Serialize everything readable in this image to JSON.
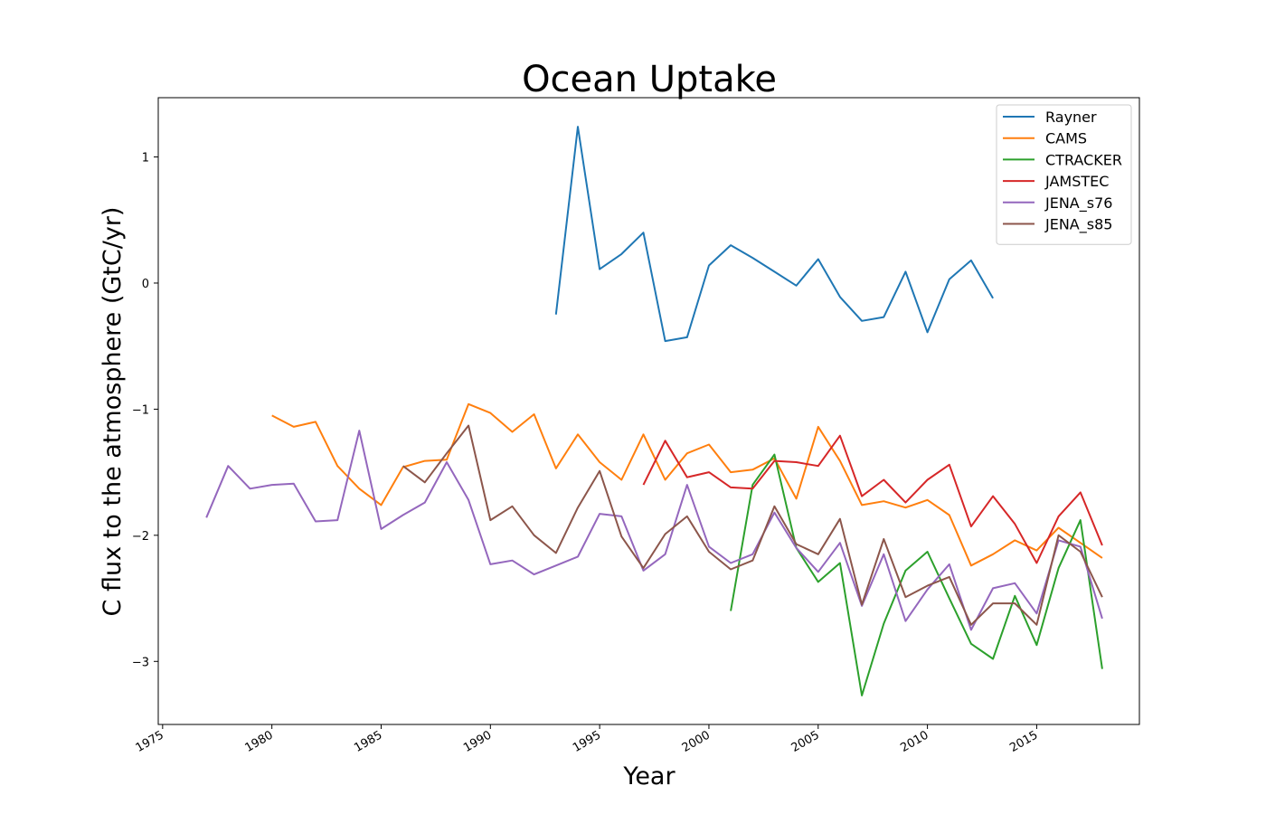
{
  "chart_data": {
    "type": "line",
    "title": "Ocean Uptake",
    "xlabel": "Year",
    "ylabel": "C flux to the atmosphere (GtC/yr)",
    "xlim": [
      1974.8,
      2019.7
    ],
    "ylim": [
      -3.5,
      1.47
    ],
    "xticks": [
      1975,
      1980,
      1985,
      1990,
      1995,
      2000,
      2005,
      2010,
      2015
    ],
    "yticks": [
      1,
      0,
      -1,
      -2,
      -3
    ],
    "ytick_labels": [
      "1",
      "0",
      "−1",
      "−2",
      "−3"
    ],
    "grid": false,
    "legend_position": "top-right",
    "series": [
      {
        "name": "Rayner",
        "color": "#1f77b4",
        "x": [
          1993,
          1994,
          1995,
          1996,
          1997,
          1998,
          1999,
          2000,
          2001,
          2002,
          2003,
          2004,
          2005,
          2006,
          2007,
          2008,
          2009,
          2010,
          2011,
          2012,
          2013
        ],
        "y": [
          -0.25,
          1.24,
          0.11,
          0.23,
          0.4,
          -0.46,
          -0.43,
          0.14,
          0.3,
          0.2,
          0.09,
          -0.02,
          0.19,
          -0.11,
          -0.3,
          -0.27,
          0.09,
          -0.39,
          0.03,
          0.18,
          -0.12
        ]
      },
      {
        "name": "CAMS",
        "color": "#ff7f0e",
        "x": [
          1980,
          1981,
          1982,
          1983,
          1984,
          1985,
          1986,
          1987,
          1988,
          1989,
          1990,
          1991,
          1992,
          1993,
          1994,
          1995,
          1996,
          1997,
          1998,
          1999,
          2000,
          2001,
          2002,
          2003,
          2004,
          2005,
          2006,
          2007,
          2008,
          2009,
          2010,
          2011,
          2012,
          2013,
          2014,
          2015,
          2016,
          2017,
          2018
        ],
        "y": [
          -1.05,
          -1.14,
          -1.1,
          -1.45,
          -1.63,
          -1.76,
          -1.46,
          -1.41,
          -1.4,
          -0.96,
          -1.03,
          -1.18,
          -1.04,
          -1.47,
          -1.2,
          -1.42,
          -1.56,
          -1.2,
          -1.56,
          -1.35,
          -1.28,
          -1.5,
          -1.48,
          -1.39,
          -1.71,
          -1.14,
          -1.41,
          -1.76,
          -1.73,
          -1.78,
          -1.72,
          -1.84,
          -2.24,
          -2.15,
          -2.04,
          -2.12,
          -1.94,
          -2.06,
          -2.18
        ]
      },
      {
        "name": "CTRACKER",
        "color": "#2ca02c",
        "x": [
          2001,
          2002,
          2003,
          2004,
          2005,
          2006,
          2007,
          2008,
          2009,
          2010,
          2011,
          2012,
          2013,
          2014,
          2015,
          2016,
          2017,
          2018
        ],
        "y": [
          -2.6,
          -1.6,
          -1.36,
          -2.1,
          -2.37,
          -2.22,
          -3.27,
          -2.7,
          -2.28,
          -2.13,
          -2.5,
          -2.86,
          -2.98,
          -2.48,
          -2.87,
          -2.26,
          -1.88,
          -3.06
        ]
      },
      {
        "name": "JAMSTEC",
        "color": "#d62728",
        "x": [
          1997,
          1998,
          1999,
          2000,
          2001,
          2002,
          2003,
          2004,
          2005,
          2006,
          2007,
          2008,
          2009,
          2010,
          2011,
          2012,
          2013,
          2014,
          2015,
          2016,
          2017,
          2018
        ],
        "y": [
          -1.6,
          -1.25,
          -1.54,
          -1.5,
          -1.62,
          -1.63,
          -1.41,
          -1.42,
          -1.45,
          -1.21,
          -1.69,
          -1.56,
          -1.74,
          -1.56,
          -1.44,
          -1.93,
          -1.69,
          -1.91,
          -2.22,
          -1.85,
          -1.66,
          -2.08
        ]
      },
      {
        "name": "JENA_s76",
        "color": "#9467bd",
        "x": [
          1977,
          1978,
          1979,
          1980,
          1981,
          1982,
          1983,
          1984,
          1985,
          1986,
          1987,
          1988,
          1989,
          1990,
          1991,
          1992,
          1993,
          1994,
          1995,
          1996,
          1997,
          1998,
          1999,
          2000,
          2001,
          2002,
          2003,
          2004,
          2005,
          2006,
          2007,
          2008,
          2009,
          2010,
          2011,
          2012,
          2013,
          2014,
          2015,
          2016,
          2017,
          2018
        ],
        "y": [
          -1.86,
          -1.45,
          -1.63,
          -1.6,
          -1.59,
          -1.89,
          -1.88,
          -1.17,
          -1.95,
          -1.84,
          -1.74,
          -1.42,
          -1.72,
          -2.23,
          -2.2,
          -2.31,
          -2.24,
          -2.17,
          -1.83,
          -1.85,
          -2.28,
          -2.15,
          -1.6,
          -2.09,
          -2.22,
          -2.15,
          -1.82,
          -2.1,
          -2.29,
          -2.06,
          -2.56,
          -2.15,
          -2.68,
          -2.43,
          -2.23,
          -2.75,
          -2.42,
          -2.38,
          -2.62,
          -2.04,
          -2.09,
          -2.66
        ]
      },
      {
        "name": "JENA_s85",
        "color": "#8c564b",
        "x": [
          1986,
          1987,
          1988,
          1989,
          1990,
          1991,
          1992,
          1993,
          1994,
          1995,
          1996,
          1997,
          1998,
          1999,
          2000,
          2001,
          2002,
          2003,
          2004,
          2005,
          2006,
          2007,
          2008,
          2009,
          2010,
          2011,
          2012,
          2013,
          2014,
          2015,
          2016,
          2017,
          2018
        ],
        "y": [
          -1.45,
          -1.58,
          -1.35,
          -1.13,
          -1.88,
          -1.77,
          -2.0,
          -2.14,
          -1.78,
          -1.49,
          -2.01,
          -2.26,
          -1.99,
          -1.85,
          -2.13,
          -2.27,
          -2.2,
          -1.77,
          -2.07,
          -2.15,
          -1.87,
          -2.55,
          -2.03,
          -2.49,
          -2.4,
          -2.33,
          -2.71,
          -2.54,
          -2.54,
          -2.71,
          -2.0,
          -2.13,
          -2.49
        ]
      }
    ]
  }
}
